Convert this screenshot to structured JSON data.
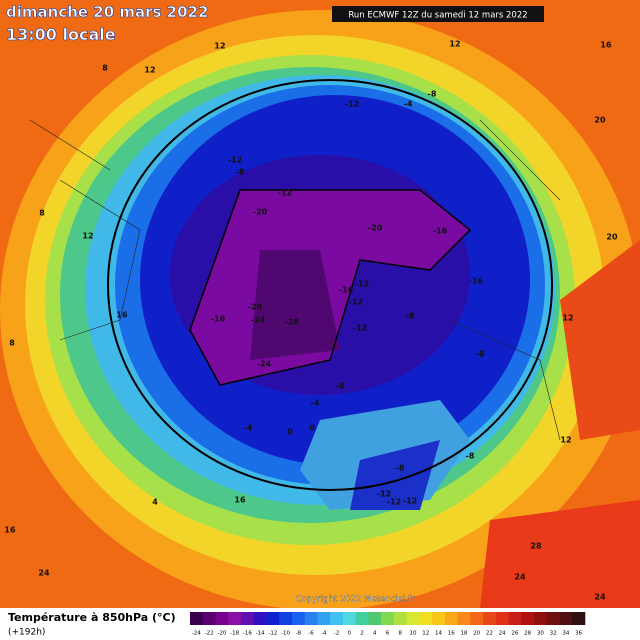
{
  "header": {
    "title": "dimanche 20 mars 2022",
    "subtitle": "13:00 locale",
    "run": "Run ECMWF 12Z du samedi 12 mars 2022"
  },
  "map": {
    "contour_labels": [
      "12",
      "12",
      "8",
      "-12",
      "-4",
      "-8",
      "-12",
      "-8",
      "-12",
      "-20",
      "-20",
      "-16",
      "-16",
      "-12",
      "-16",
      "-12",
      "-12",
      "-8",
      "-20",
      "-24",
      "-28",
      "-16",
      "-24",
      "-8",
      "-8",
      "-4",
      "-4",
      "0",
      "-8",
      "-8",
      "-12",
      "-12",
      "-12",
      "0",
      "16",
      "8",
      "12",
      "8",
      "4",
      "16",
      "16",
      "24",
      "24",
      "24",
      "28",
      "20",
      "20",
      "16",
      "12",
      "12",
      "12"
    ],
    "copyright": "Copyright 2022 Meteociel.fr"
  },
  "legend": {
    "title": "Température à 850hPa (°C)",
    "lead": "(+192h)",
    "ticks": [
      -24,
      -22,
      -20,
      -18,
      -16,
      -14,
      -12,
      -10,
      -8,
      -6,
      -4,
      -2,
      0,
      2,
      4,
      6,
      8,
      10,
      12,
      14,
      16,
      18,
      20,
      22,
      24,
      26,
      28,
      30,
      32,
      34,
      36
    ]
  }
}
